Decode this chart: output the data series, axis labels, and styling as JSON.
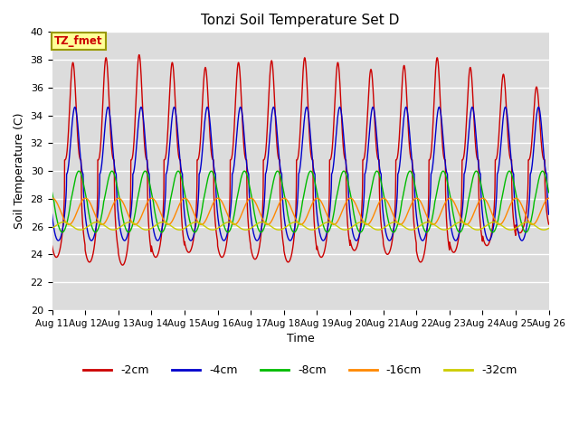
{
  "title": "Tonzi Soil Temperature Set D",
  "xlabel": "Time",
  "ylabel": "Soil Temperature (C)",
  "ylim": [
    20,
    40
  ],
  "n_days": 15,
  "background_color": "#dcdcdc",
  "series": [
    {
      "label": "-2cm",
      "color": "#cc0000",
      "mean": 30.8,
      "amplitude": 7.0,
      "phase_shift": 0.0,
      "sharpness": 3.0,
      "amplitude_envelope": [
        1.0,
        1.05,
        1.08,
        1.0,
        0.95,
        1.0,
        1.02,
        1.05,
        1.0,
        0.93,
        0.97,
        1.05,
        0.95,
        0.88,
        0.75
      ]
    },
    {
      "label": "-4cm",
      "color": "#0000cc",
      "mean": 29.8,
      "amplitude": 4.8,
      "phase_shift": 0.06,
      "sharpness": 2.0,
      "amplitude_envelope": [
        1.0,
        1.0,
        1.0,
        1.0,
        1.0,
        1.0,
        1.0,
        1.0,
        1.0,
        1.0,
        1.0,
        1.0,
        1.0,
        1.0,
        1.0
      ]
    },
    {
      "label": "-8cm",
      "color": "#00bb00",
      "mean": 27.8,
      "amplitude": 2.2,
      "phase_shift": 0.18,
      "sharpness": 1.2,
      "amplitude_envelope": [
        1.0,
        1.0,
        1.0,
        1.0,
        1.0,
        1.0,
        1.0,
        1.0,
        1.0,
        1.0,
        1.0,
        1.0,
        1.0,
        1.0,
        1.0
      ]
    },
    {
      "label": "-16cm",
      "color": "#ff8800",
      "mean": 27.1,
      "amplitude": 0.95,
      "phase_shift": 0.38,
      "sharpness": 1.0,
      "amplitude_envelope": [
        1.0,
        1.0,
        1.0,
        1.0,
        1.0,
        1.0,
        1.0,
        1.0,
        1.0,
        1.0,
        1.0,
        1.0,
        1.0,
        1.0,
        1.0
      ]
    },
    {
      "label": "-32cm",
      "color": "#cccc00",
      "mean": 26.05,
      "amplitude": 0.28,
      "phase_shift": 0.72,
      "sharpness": 1.0,
      "amplitude_envelope": [
        1.0,
        1.0,
        1.0,
        1.0,
        1.0,
        1.0,
        1.0,
        1.0,
        1.0,
        1.0,
        1.0,
        1.0,
        1.0,
        1.0,
        1.0
      ]
    }
  ],
  "annotation_text": "TZ_fmet",
  "annotation_bg": "#ffff99",
  "annotation_fg": "#cc0000",
  "xtick_labels": [
    "Aug 11",
    "Aug 12",
    "Aug 13",
    "Aug 14",
    "Aug 15",
    "Aug 16",
    "Aug 17",
    "Aug 18",
    "Aug 19",
    "Aug 20",
    "Aug 21",
    "Aug 22",
    "Aug 23",
    "Aug 24",
    "Aug 25",
    "Aug 26"
  ],
  "grid_color": "#ffffff",
  "points_per_day": 200
}
